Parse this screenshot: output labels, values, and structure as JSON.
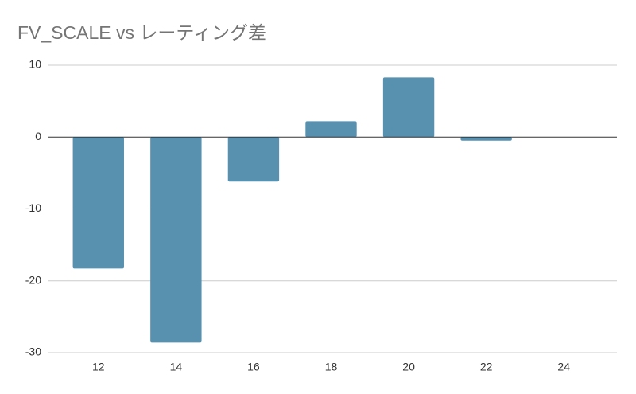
{
  "chart_data": {
    "type": "bar",
    "title": "FV_SCALE vs レーティング差",
    "categories": [
      "12",
      "14",
      "16",
      "18",
      "20",
      "22",
      "24"
    ],
    "values": [
      -18.3,
      -28.6,
      -6.2,
      2.2,
      8.3,
      -0.5,
      0
    ],
    "color": "#5891b0",
    "ylim": [
      -30,
      10
    ],
    "yticks": [
      -30,
      -20,
      -10,
      0,
      10
    ],
    "grid": true
  }
}
